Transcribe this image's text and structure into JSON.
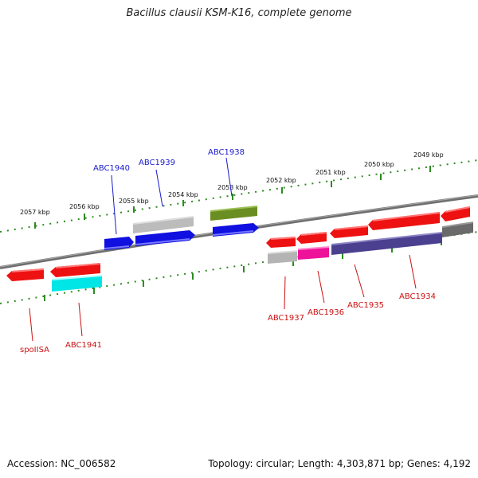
{
  "title": "Bacillus clausii KSM-K16, complete genome",
  "accession": "Accession: NC_006582",
  "summary": "Topology: circular; Length: 4,303,871 bp; Genes: 4,192",
  "colors": {
    "backbone": "#7a7a7a",
    "tick": "#2e8b22",
    "forward_label": "#1a1acc",
    "reverse_label": "#cc1111"
  },
  "kbp_labels": [
    "2057 kbp",
    "2056 kbp",
    "2055 kbp",
    "2054 kbp",
    "2053 kbp",
    "2052 kbp",
    "2051 kbp",
    "2050 kbp",
    "2049 kbp"
  ],
  "genes_forward": [
    {
      "label": "ABC1940",
      "color": "#1010e0"
    },
    {
      "label": "ABC1939",
      "color": "#b8b8b8"
    },
    {
      "label": "ABC1938",
      "color": "#6b8e23"
    }
  ],
  "genes_reverse": [
    {
      "label": "spoIISA",
      "color": "#ee1111"
    },
    {
      "label": "ABC1941",
      "color": "#ee1111"
    },
    {
      "label": "ABC1937",
      "color": "#ee1111"
    },
    {
      "label": "ABC1936",
      "color": "#ee1111"
    },
    {
      "label": "ABC1935",
      "color": "#ee1111"
    },
    {
      "label": "ABC1934",
      "color": "#ee1111"
    }
  ]
}
